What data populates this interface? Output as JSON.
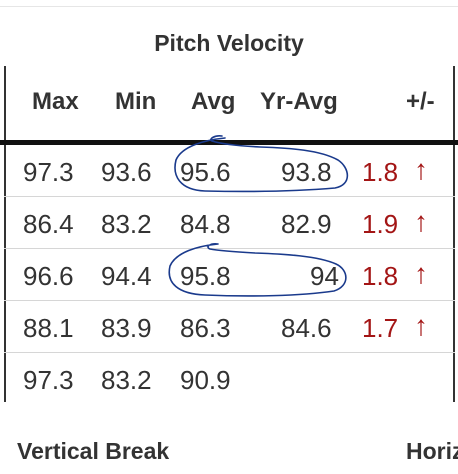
{
  "table": {
    "title": "Pitch Velocity",
    "headers": {
      "max": "Max",
      "min": "Min",
      "avg": "Avg",
      "yr_avg": "Yr-Avg",
      "diff": "+/-"
    },
    "rows": [
      {
        "max": "97.3",
        "min": "93.6",
        "avg": "95.6",
        "yr_avg": "93.8",
        "diff": "1.8",
        "arrow": "↑"
      },
      {
        "max": "86.4",
        "min": "83.2",
        "avg": "84.8",
        "yr_avg": "82.9",
        "diff": "1.9",
        "arrow": "↑"
      },
      {
        "max": "96.6",
        "min": "94.4",
        "avg": "95.8",
        "yr_avg": "94",
        "diff": "1.8",
        "arrow": "↑"
      },
      {
        "max": "88.1",
        "min": "83.9",
        "avg": "86.3",
        "yr_avg": "84.6",
        "diff": "1.7",
        "arrow": "↑"
      },
      {
        "max": "97.3",
        "min": "83.2",
        "avg": "90.9",
        "yr_avg": "",
        "diff": "",
        "arrow": ""
      }
    ]
  },
  "sections": {
    "left": "Vertical Break",
    "right": "Horiz"
  },
  "colors": {
    "up_arrow": "#a31515",
    "annotation_ink": "#1a3a8c"
  }
}
